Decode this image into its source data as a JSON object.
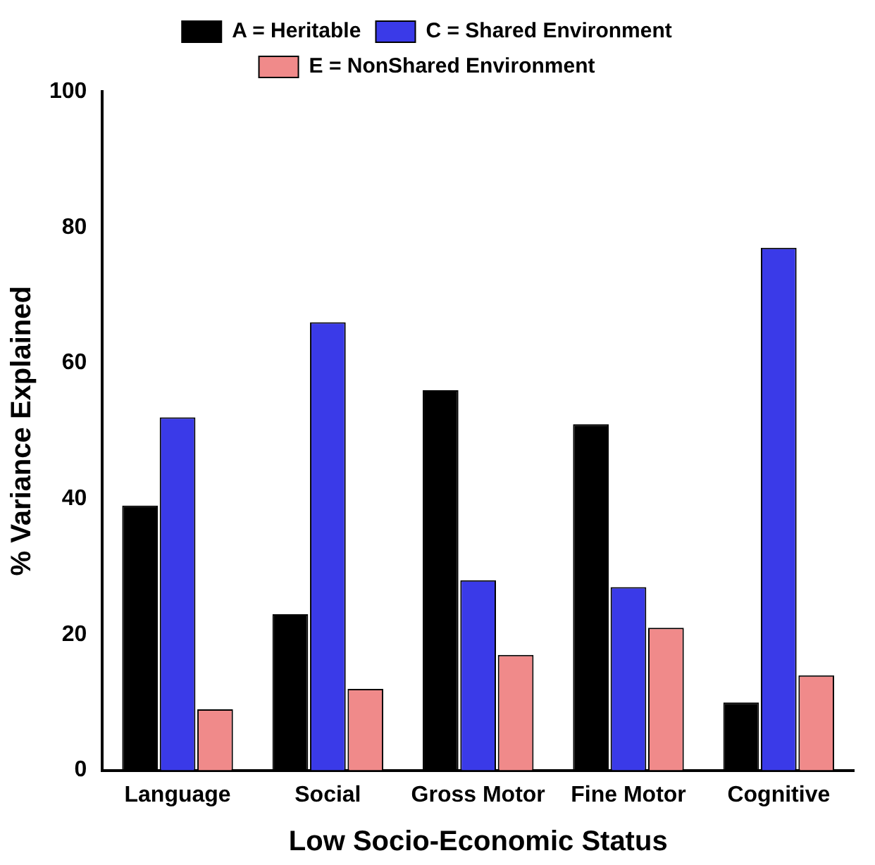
{
  "chart_data": {
    "type": "bar",
    "xlabel": "Low Socio-Economic Status",
    "ylabel": "% Variance Explained",
    "categories": [
      "Language",
      "Social",
      "Gross Motor",
      "Fine Motor",
      "Cognitive"
    ],
    "series": [
      {
        "name": "A = Heritable",
        "color": "#000000",
        "values": [
          39,
          23,
          56,
          51,
          10
        ]
      },
      {
        "name": "C = Shared Environment",
        "color": "#3a3ae8",
        "values": [
          52,
          66,
          28,
          27,
          77
        ]
      },
      {
        "name": "E = NonShared Environment",
        "color": "#f08a8a",
        "values": [
          9,
          12,
          17,
          21,
          14
        ]
      }
    ],
    "ylim": [
      0,
      100
    ],
    "yticks": [
      0,
      20,
      40,
      60,
      80,
      100
    ],
    "grid": false,
    "legend": "top"
  }
}
